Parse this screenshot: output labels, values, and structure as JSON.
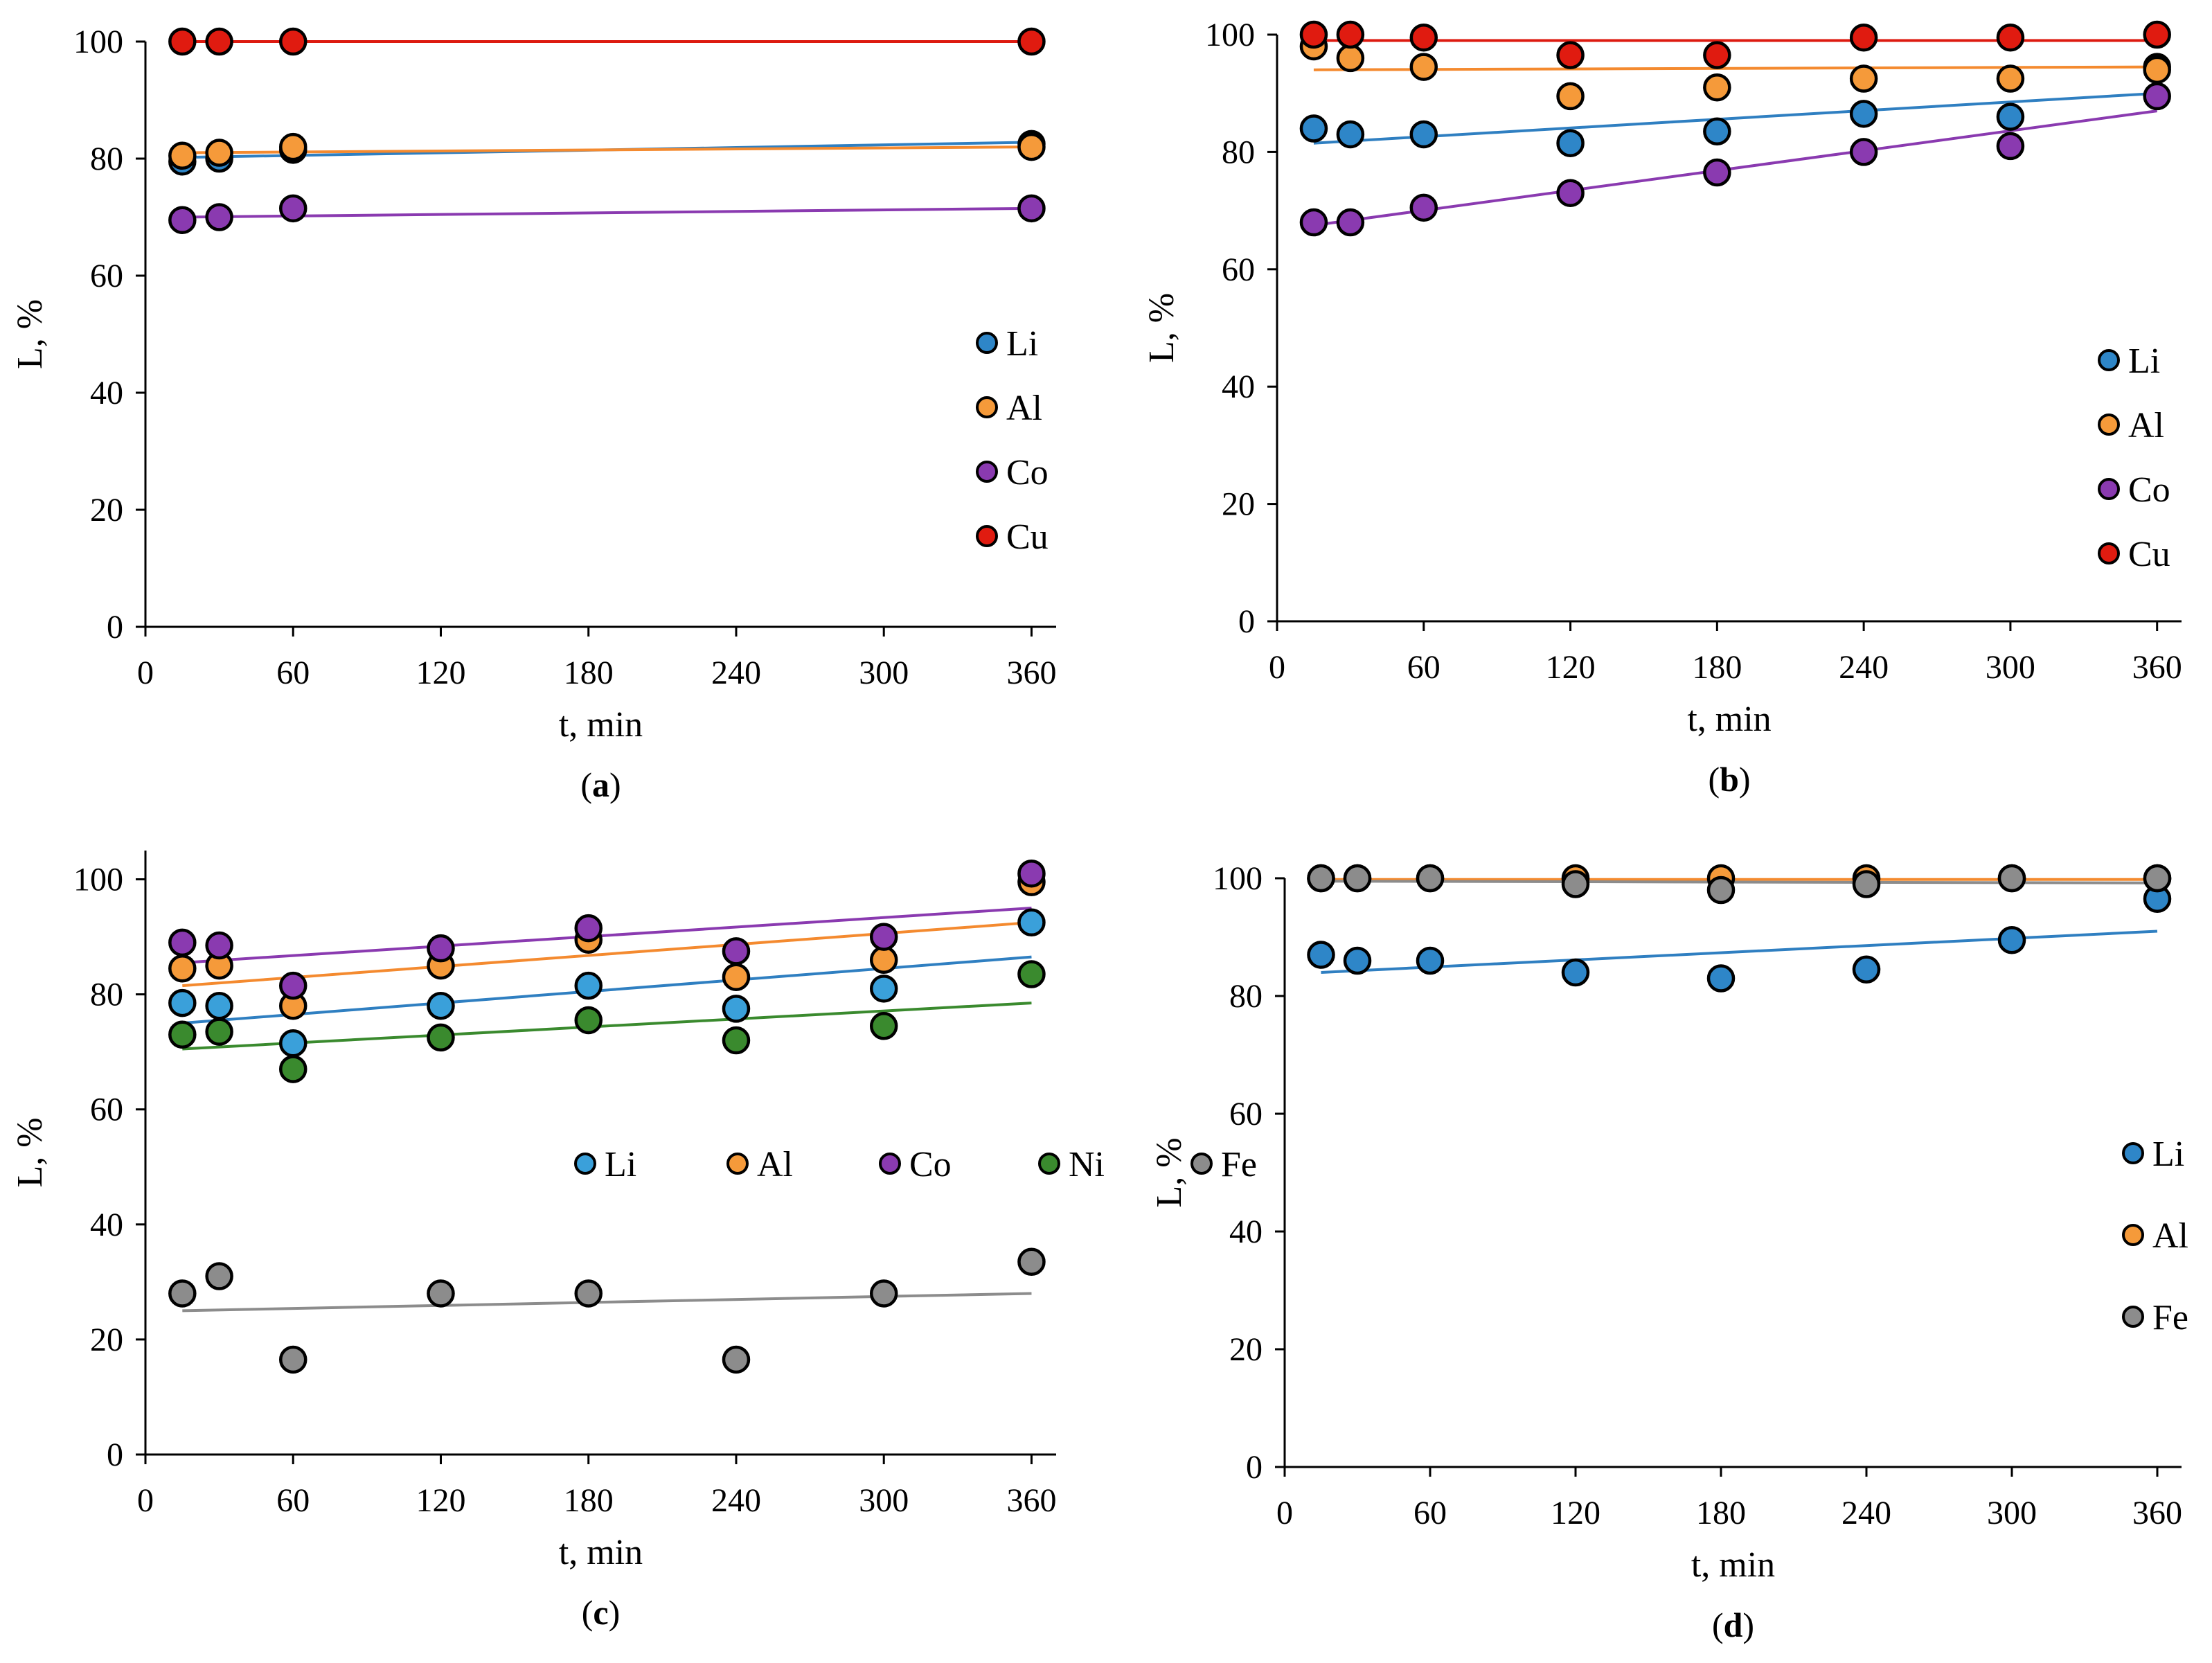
{
  "colors": {
    "Li_a": "#2E86C8",
    "Li_c": "#3AA0DA",
    "Al": "#F59A3A",
    "Co": "#8A3AB0",
    "Cu": "#E01B10",
    "Ni": "#3A8A2E",
    "Fe": "#8C8C8C",
    "Li_line": "#2F7FC1",
    "Al_line": "#F48A2F",
    "Co_line": "#8A3AB0",
    "Cu_line": "#DD1A10",
    "Ni_line": "#3A8A2E",
    "Fe_line": "#8C8C8C"
  },
  "chart_data": [
    {
      "type": "scatter",
      "caption": {
        "open": "(",
        "bold": "a",
        "close": ")"
      },
      "xlabel": "t, min",
      "ylabel": "L, %",
      "xlim": [
        0,
        370
      ],
      "ylim": [
        0,
        100
      ],
      "xticks": [
        0,
        60,
        120,
        180,
        240,
        300,
        360
      ],
      "yticks": [
        0,
        20,
        40,
        60,
        80,
        100
      ],
      "legend": {
        "layout": "vertical",
        "position": "right-middle"
      },
      "series": [
        {
          "name": "Li",
          "color_key": "Li_a",
          "line_key": "Li_line",
          "x": [
            15,
            30,
            60,
            360
          ],
          "y": [
            79.5,
            80,
            81.5,
            82.5
          ],
          "trend": [
            80.2,
            82.8
          ]
        },
        {
          "name": "Al",
          "color_key": "Al",
          "line_key": "Al_line",
          "x": [
            15,
            30,
            60,
            360
          ],
          "y": [
            80.5,
            81,
            82,
            82
          ],
          "trend": [
            81,
            82
          ]
        },
        {
          "name": "Co",
          "color_key": "Co",
          "line_key": "Co_line",
          "x": [
            15,
            30,
            60,
            360
          ],
          "y": [
            69.5,
            70,
            71.5,
            71.5
          ],
          "trend": [
            70,
            71.5
          ]
        },
        {
          "name": "Cu",
          "color_key": "Cu",
          "line_key": "Cu_line",
          "x": [
            15,
            30,
            60,
            360
          ],
          "y": [
            100,
            100,
            100,
            100
          ],
          "trend": [
            100,
            100
          ]
        }
      ]
    },
    {
      "type": "scatter",
      "caption": {
        "open": "(",
        "bold": "b",
        "close": ")"
      },
      "xlabel": "t, min",
      "ylabel": "L, %",
      "xlim": [
        0,
        370
      ],
      "ylim": [
        0,
        100
      ],
      "xticks": [
        0,
        60,
        120,
        180,
        240,
        300,
        360
      ],
      "yticks": [
        0,
        20,
        40,
        60,
        80,
        100
      ],
      "legend": {
        "layout": "vertical",
        "position": "right-bottom"
      },
      "series": [
        {
          "name": "Li",
          "color_key": "Li_a",
          "line_key": "Li_line",
          "x": [
            15,
            30,
            60,
            120,
            180,
            240,
            300,
            360
          ],
          "y": [
            84,
            83,
            83,
            81.5,
            83.5,
            86.5,
            86,
            94.5
          ],
          "trend": [
            81.5,
            90
          ]
        },
        {
          "name": "Al",
          "color_key": "Al",
          "line_key": "Al_line",
          "x": [
            15,
            30,
            60,
            120,
            180,
            240,
            300,
            360
          ],
          "y": [
            98,
            96,
            94.5,
            89.5,
            91,
            92.5,
            92.5,
            94
          ],
          "trend": [
            94,
            94.5
          ]
        },
        {
          "name": "Co",
          "color_key": "Co",
          "line_key": "Co_line",
          "x": [
            15,
            30,
            60,
            120,
            180,
            240,
            300,
            360
          ],
          "y": [
            68,
            68,
            70.5,
            73,
            76.5,
            80,
            81,
            89.5
          ],
          "trend": [
            67.5,
            87
          ]
        },
        {
          "name": "Cu",
          "color_key": "Cu",
          "line_key": "Cu_line",
          "x": [
            15,
            30,
            60,
            120,
            180,
            240,
            300,
            360
          ],
          "y": [
            100,
            100,
            99.5,
            96.5,
            96.5,
            99.5,
            99.5,
            100
          ],
          "trend": [
            99,
            99
          ]
        }
      ]
    },
    {
      "type": "scatter",
      "caption": {
        "open": "(",
        "bold": "c",
        "close": ")"
      },
      "xlabel": "t, min",
      "ylabel": "L, %",
      "xlim": [
        0,
        370
      ],
      "ylim": [
        0,
        105
      ],
      "xticks": [
        0,
        60,
        120,
        180,
        240,
        300,
        360
      ],
      "yticks": [
        0,
        20,
        40,
        60,
        80,
        100
      ],
      "legend": {
        "layout": "horizontal",
        "position": "right-middle"
      },
      "series": [
        {
          "name": "Li",
          "color_key": "Li_c",
          "line_key": "Li_line",
          "x": [
            15,
            30,
            60,
            120,
            180,
            240,
            300,
            360
          ],
          "y": [
            78.5,
            78,
            71.5,
            78,
            81.5,
            77.5,
            81,
            92.5
          ],
          "trend": [
            75,
            86.5
          ]
        },
        {
          "name": "Al",
          "color_key": "Al",
          "line_key": "Al_line",
          "x": [
            15,
            30,
            60,
            120,
            180,
            240,
            300,
            360
          ],
          "y": [
            84.5,
            85,
            78,
            85,
            89.5,
            83,
            86,
            99.5
          ],
          "trend": [
            81.5,
            92.5
          ]
        },
        {
          "name": "Co",
          "color_key": "Co",
          "line_key": "Co_line",
          "x": [
            15,
            30,
            60,
            120,
            180,
            240,
            300,
            360
          ],
          "y": [
            89,
            88.5,
            81.5,
            88,
            91.5,
            87.5,
            90,
            101
          ],
          "trend": [
            85.5,
            95
          ]
        },
        {
          "name": "Ni",
          "color_key": "Ni",
          "line_key": "Ni_line",
          "x": [
            15,
            30,
            60,
            120,
            180,
            240,
            300,
            360
          ],
          "y": [
            73,
            73.5,
            67,
            72.5,
            75.5,
            72,
            74.5,
            83.5
          ],
          "trend": [
            70.5,
            78.5
          ]
        },
        {
          "name": "Fe",
          "color_key": "Fe",
          "line_key": "Fe_line",
          "x": [
            15,
            30,
            60,
            120,
            180,
            240,
            300,
            360
          ],
          "y": [
            28,
            31,
            16.5,
            28,
            28,
            16.5,
            28,
            33.5
          ],
          "trend": [
            25,
            28
          ]
        }
      ]
    },
    {
      "type": "scatter",
      "caption": {
        "open": "(",
        "bold": "d",
        "close": ")"
      },
      "xlabel": "t, min",
      "ylabel": "L, %",
      "xlim": [
        0,
        370
      ],
      "ylim": [
        0,
        100
      ],
      "xticks": [
        0,
        60,
        120,
        180,
        240,
        300,
        360
      ],
      "yticks": [
        0,
        20,
        40,
        60,
        80,
        100
      ],
      "legend": {
        "layout": "vertical",
        "position": "right-middle"
      },
      "series": [
        {
          "name": "Li",
          "color_key": "Li_a",
          "line_key": "Li_line",
          "x": [
            15,
            30,
            60,
            120,
            180,
            240,
            300,
            360
          ],
          "y": [
            87,
            86,
            86,
            84,
            83,
            84.5,
            89.5,
            96.5
          ],
          "trend": [
            84,
            91
          ]
        },
        {
          "name": "Al",
          "color_key": "Al",
          "line_key": "Al_line",
          "x": [
            15,
            30,
            60,
            120,
            180,
            240,
            300,
            360
          ],
          "y": [
            100,
            100,
            100,
            100,
            100,
            100,
            100,
            100
          ],
          "trend": [
            99.8,
            99.8
          ]
        },
        {
          "name": "Fe",
          "color_key": "Fe",
          "line_key": "Fe_line",
          "x": [
            15,
            30,
            60,
            120,
            180,
            240,
            300,
            360
          ],
          "y": [
            100,
            100,
            100,
            99,
            98,
            99,
            100,
            100
          ],
          "trend": [
            99.5,
            99.2
          ]
        }
      ]
    }
  ]
}
